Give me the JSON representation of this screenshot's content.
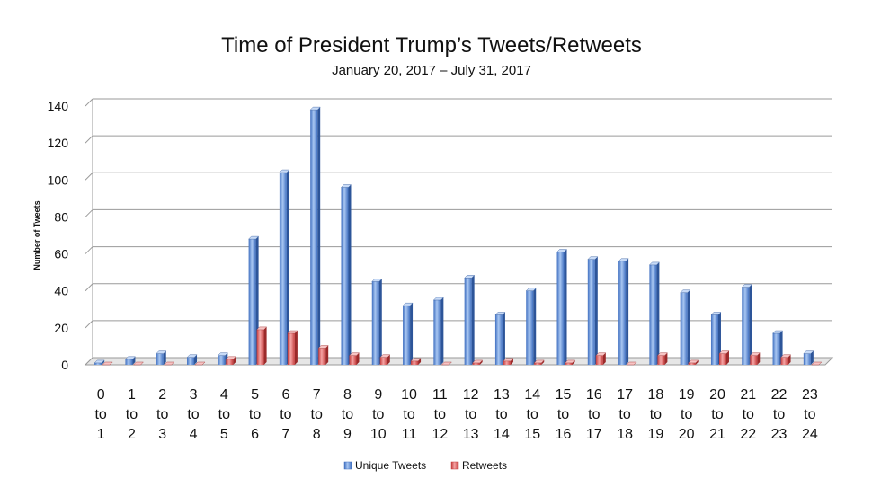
{
  "chart_data": {
    "type": "bar",
    "title": "Time of President Trump’s Tweets/Retweets",
    "subtitle": "January 20, 2017 – July 31, 2017",
    "ylabel": "Number of Tweets",
    "xlabel": "",
    "ylim": [
      0,
      140
    ],
    "yticks": [
      0,
      20,
      40,
      60,
      80,
      100,
      120,
      140
    ],
    "grid": true,
    "legend_position": "bottom",
    "categories": [
      "0 to 1",
      "1 to 2",
      "2 to 3",
      "3 to 4",
      "4 to 5",
      "5 to 6",
      "6 to 7",
      "7 to 8",
      "8 to 9",
      "9 to 10",
      "10 to 11",
      "11 to 12",
      "12 to 13",
      "13 to 14",
      "14 to 15",
      "15 to 16",
      "16 to 17",
      "17 to 18",
      "18 to 19",
      "19 to 20",
      "20 to 21",
      "21 to 22",
      "22 to 23",
      "23 to 24"
    ],
    "series": [
      {
        "name": "Unique Tweets",
        "color": "#5b8fd6",
        "values": [
          1,
          3,
          6,
          4,
          5,
          68,
          104,
          138,
          96,
          45,
          32,
          35,
          47,
          27,
          40,
          61,
          57,
          56,
          54,
          39,
          27,
          42,
          17,
          6
        ]
      },
      {
        "name": "Retweets",
        "color": "#e05c5c",
        "values": [
          0,
          0,
          0,
          0,
          3,
          19,
          17,
          9,
          5,
          4,
          2,
          0,
          1,
          2,
          1,
          1,
          5,
          0,
          5,
          1,
          6,
          5,
          4,
          0
        ]
      }
    ]
  }
}
